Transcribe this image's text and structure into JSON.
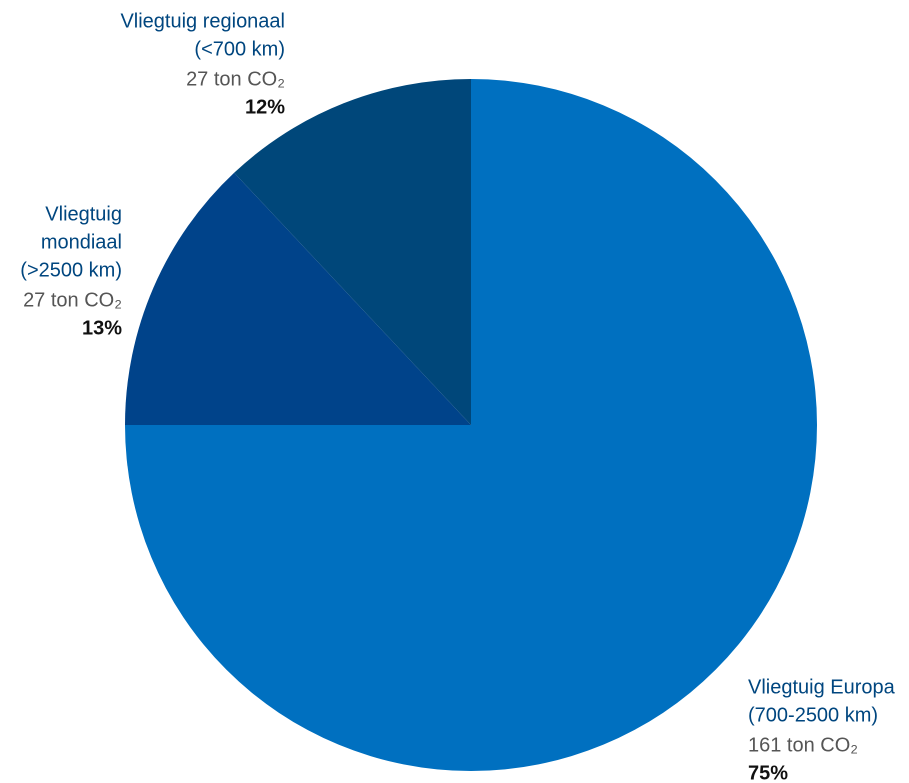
{
  "chart_data": {
    "type": "pie",
    "categories": [
      [
        "Vliegtuig Europa",
        "(700-2500 km)"
      ],
      [
        "Vliegtuig",
        "mondiaal",
        "(>2500 km)"
      ],
      [
        "Vliegtuig regionaal",
        "(<700 km)"
      ]
    ],
    "amounts": [
      "161 ton CO₂",
      "27 ton CO₂",
      "27 ton CO₂"
    ],
    "values": [
      75,
      13,
      12
    ],
    "value_labels": [
      "75%",
      "13%",
      "12%"
    ],
    "colors": [
      "#0070c0",
      "#00438a",
      "#00477a"
    ]
  }
}
